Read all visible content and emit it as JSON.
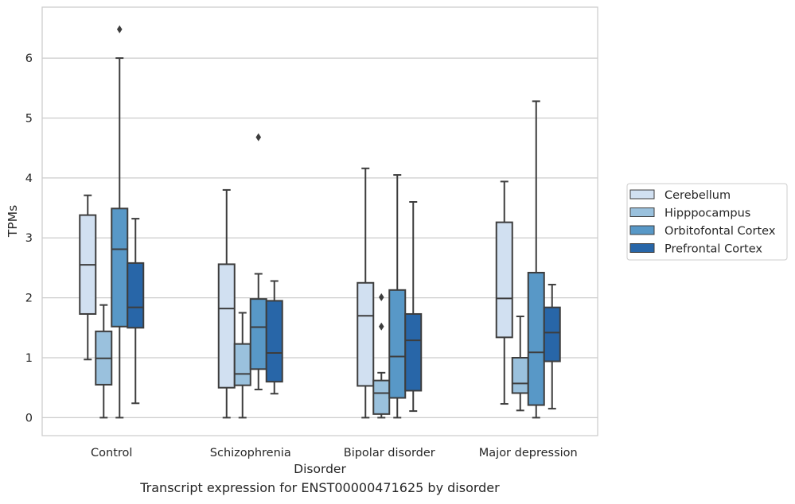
{
  "chart_data": {
    "type": "box",
    "title": "",
    "caption": "Transcript expression for ENST00000471625 by disorder",
    "xlabel": "Disorder",
    "ylabel": "TPMs",
    "ylim": [
      -0.3,
      6.85
    ],
    "yticks": [
      "0",
      "1",
      "2",
      "3",
      "4",
      "5",
      "6"
    ],
    "grid": true,
    "legend_position": "right",
    "categories": [
      "Control",
      "Schizophrenia",
      "Bipolar disorder",
      "Major depression"
    ],
    "series": [
      {
        "name": "Cerebellum",
        "color": "#d1e0f1",
        "boxes": [
          {
            "whislo": 0.97,
            "q1": 1.73,
            "med": 2.55,
            "q3": 3.38,
            "whishi": 3.71,
            "fliers": []
          },
          {
            "whislo": 0.0,
            "q1": 0.5,
            "med": 1.82,
            "q3": 2.56,
            "whishi": 3.8,
            "fliers": []
          },
          {
            "whislo": 0.0,
            "q1": 0.53,
            "med": 1.7,
            "q3": 2.25,
            "whishi": 4.16,
            "fliers": []
          },
          {
            "whislo": 0.23,
            "q1": 1.34,
            "med": 1.99,
            "q3": 3.26,
            "whishi": 3.94,
            "fliers": []
          }
        ]
      },
      {
        "name": "Hipppocampus",
        "color": "#9ac1dd",
        "boxes": [
          {
            "whislo": 0.0,
            "q1": 0.55,
            "med": 0.99,
            "q3": 1.44,
            "whishi": 1.88,
            "fliers": []
          },
          {
            "whislo": 0.0,
            "q1": 0.54,
            "med": 0.73,
            "q3": 1.23,
            "whishi": 1.75,
            "fliers": []
          },
          {
            "whislo": 0.0,
            "q1": 0.06,
            "med": 0.41,
            "q3": 0.62,
            "whishi": 0.75,
            "fliers": [
              2.01,
              1.52
            ]
          },
          {
            "whislo": 0.12,
            "q1": 0.41,
            "med": 0.57,
            "q3": 1.0,
            "whishi": 1.69,
            "fliers": []
          }
        ]
      },
      {
        "name": "Orbitofontal Cortex",
        "color": "#5898c7",
        "boxes": [
          {
            "whislo": 0.0,
            "q1": 1.52,
            "med": 2.81,
            "q3": 3.49,
            "whishi": 6.0,
            "fliers": [
              6.48
            ]
          },
          {
            "whislo": 0.47,
            "q1": 0.81,
            "med": 1.51,
            "q3": 1.98,
            "whishi": 2.4,
            "fliers": [
              4.68
            ]
          },
          {
            "whislo": 0.0,
            "q1": 0.33,
            "med": 1.02,
            "q3": 2.13,
            "whishi": 4.05,
            "fliers": []
          },
          {
            "whislo": 0.0,
            "q1": 0.21,
            "med": 1.09,
            "q3": 2.42,
            "whishi": 5.28,
            "fliers": []
          }
        ]
      },
      {
        "name": "Prefrontal Cortex",
        "color": "#2866a8",
        "boxes": [
          {
            "whislo": 0.24,
            "q1": 1.5,
            "med": 1.84,
            "q3": 2.58,
            "whishi": 3.32,
            "fliers": []
          },
          {
            "whislo": 0.4,
            "q1": 0.6,
            "med": 1.08,
            "q3": 1.95,
            "whishi": 2.28,
            "fliers": []
          },
          {
            "whislo": 0.11,
            "q1": 0.45,
            "med": 1.29,
            "q3": 1.73,
            "whishi": 3.6,
            "fliers": []
          },
          {
            "whislo": 0.15,
            "q1": 0.94,
            "med": 1.42,
            "q3": 1.84,
            "whishi": 2.22,
            "fliers": []
          }
        ]
      }
    ]
  }
}
